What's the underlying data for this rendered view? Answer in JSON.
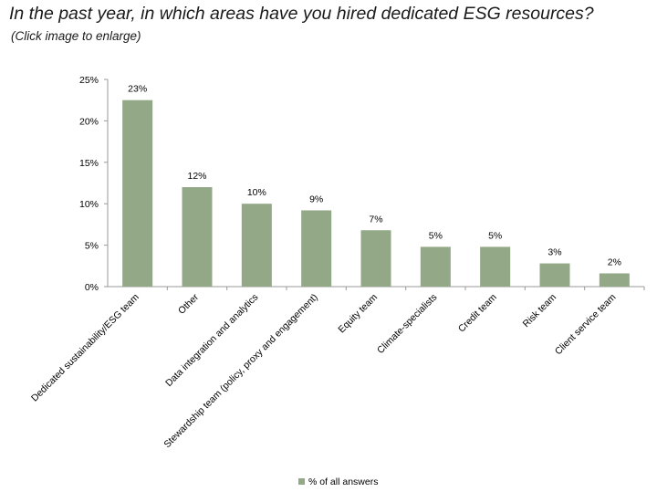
{
  "header": {
    "title": "In the past year, in which areas have you hired dedicated ESG resources?",
    "subtitle": "(Click image to enlarge)"
  },
  "colors": {
    "bar": "#93a886",
    "axis": "#9a9a9a",
    "text": "#000000"
  },
  "chart_data": {
    "type": "bar",
    "categories": [
      "Dedicated sustainability/ESG team",
      "Other",
      "Data integration and analytics",
      "Stewardship team (policy, proxy and engagement)",
      "Equity team",
      "Climate-specialists",
      "Credit team",
      "Risk team",
      "Client service team"
    ],
    "series": [
      {
        "name": "% of all answers",
        "values": [
          22.5,
          12,
          10,
          9.2,
          6.8,
          4.8,
          4.8,
          2.8,
          1.6
        ],
        "labels": [
          "23%",
          "12%",
          "10%",
          "9%",
          "7%",
          "5%",
          "5%",
          "3%",
          "2%"
        ]
      }
    ],
    "ylim": [
      0,
      25
    ],
    "yticks": [
      0,
      5,
      10,
      15,
      20,
      25
    ],
    "ytick_labels": [
      "0%",
      "5%",
      "10%",
      "15%",
      "20%",
      "25%"
    ],
    "grid": false,
    "legend": "bottom"
  }
}
